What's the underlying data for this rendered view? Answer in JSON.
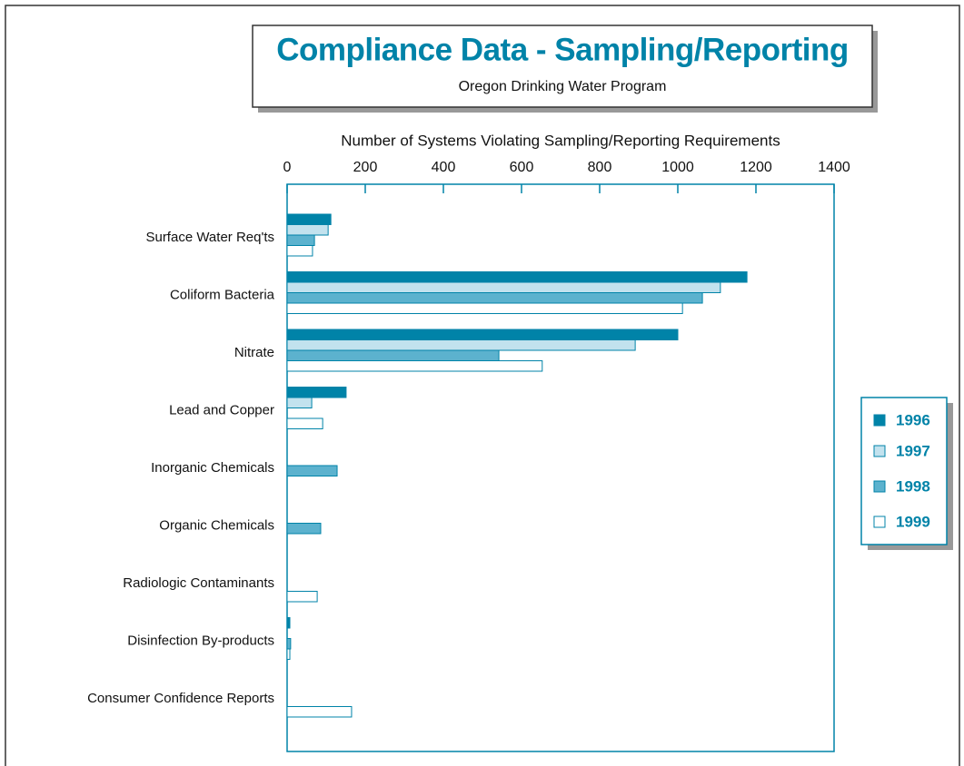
{
  "chart_data": {
    "type": "bar",
    "orientation": "horizontal",
    "title": "Compliance Data - Sampling/Reporting",
    "subtitle": "Oregon Drinking Water Program",
    "x_label": "Number of Systems Violating Sampling/Reporting Requirements",
    "categories": [
      "Surface Water Req'ts",
      "Coliform Bacteria",
      "Nitrate",
      "Lead and Copper",
      "Inorganic Chemicals",
      "Organic Chemicals",
      "Radiologic Contaminants",
      "Disinfection By-products",
      "Consumer Confidence Reports"
    ],
    "series": [
      {
        "name": "1996",
        "color": "#0083a8",
        "values": [
          112,
          1177,
          1000,
          151,
          0,
          0,
          0,
          7,
          0
        ]
      },
      {
        "name": "1997",
        "color": "#c2e2ee",
        "values": [
          105,
          1109,
          891,
          63,
          0,
          0,
          0,
          0,
          0
        ]
      },
      {
        "name": "1998",
        "color": "#5cb2ce",
        "values": [
          70,
          1063,
          542,
          0,
          128,
          86,
          0,
          9,
          0
        ]
      },
      {
        "name": "1999",
        "color": "#ffffff",
        "values": [
          65,
          1012,
          653,
          91,
          0,
          0,
          77,
          7,
          165
        ]
      }
    ],
    "xlim": [
      0,
      1400
    ],
    "xticks": [
      0,
      200,
      400,
      600,
      800,
      1000,
      1200,
      1400
    ],
    "legend": "right"
  }
}
